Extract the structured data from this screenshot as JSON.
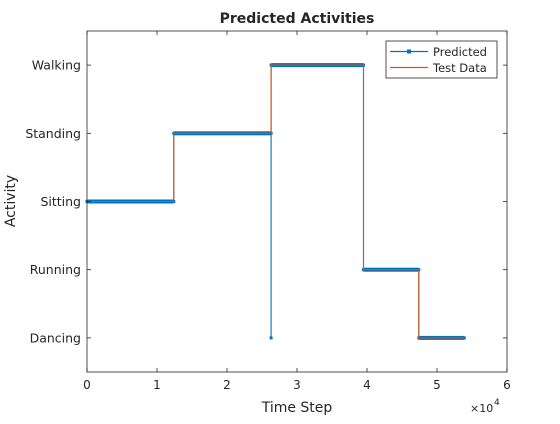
{
  "chart_data": {
    "type": "line",
    "title": "Predicted Activities",
    "xlabel": "Time Step",
    "ylabel": "Activity",
    "x_exponent_label": "×10",
    "x_exponent_power": "4",
    "xlim": [
      0,
      60000
    ],
    "ylim": [
      0.5,
      5.5
    ],
    "x_ticks": [
      0,
      10000,
      20000,
      30000,
      40000,
      50000,
      60000
    ],
    "x_tick_labels": [
      "0",
      "1",
      "2",
      "3",
      "4",
      "5",
      "6"
    ],
    "y_ticks": [
      1,
      2,
      3,
      4,
      5
    ],
    "y_tick_labels": [
      "Dancing",
      "Running",
      "Sitting",
      "Standing",
      "Walking"
    ],
    "legend_location": "top-right",
    "grid": false,
    "series": [
      {
        "name": "Predicted",
        "color": "#0072BD",
        "marker": "square",
        "points": [
          [
            0,
            3
          ],
          [
            12400,
            3
          ],
          [
            12400,
            4
          ],
          [
            26300,
            4
          ],
          [
            26300,
            1
          ],
          [
            26300,
            5
          ],
          [
            39500,
            5
          ],
          [
            39500,
            2
          ],
          [
            47400,
            2
          ],
          [
            47400,
            1
          ],
          [
            53900,
            1
          ]
        ]
      },
      {
        "name": "Test Data",
        "color": "#D95319",
        "marker": "none",
        "points": [
          [
            0,
            3
          ],
          [
            12400,
            3
          ],
          [
            12400,
            4
          ],
          [
            26300,
            4
          ],
          [
            26300,
            5
          ],
          [
            39500,
            5
          ],
          [
            39500,
            2
          ],
          [
            47400,
            2
          ],
          [
            47400,
            1
          ],
          [
            53900,
            1
          ]
        ]
      }
    ]
  }
}
